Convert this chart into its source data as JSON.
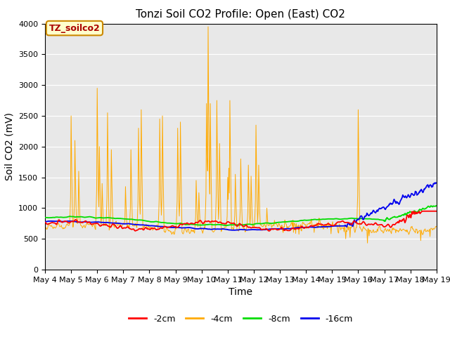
{
  "title": "Tonzi Soil CO2 Profile: Open (East) CO2",
  "xlabel": "Time",
  "ylabel": "Soil CO2 (mV)",
  "ylim": [
    0,
    4000
  ],
  "yticks": [
    0,
    500,
    1000,
    1500,
    2000,
    2500,
    3000,
    3500,
    4000
  ],
  "colors": {
    "2cm": "#ff0000",
    "4cm": "#ffaa00",
    "8cm": "#00dd00",
    "16cm": "#0000ee"
  },
  "legend_labels": [
    "-2cm",
    "-4cm",
    "-8cm",
    "-16cm"
  ],
  "annotation_box_text": "TZ_soilco2",
  "annotation_box_color": "#ffffcc",
  "annotation_box_edge": "#cc8800",
  "annotation_text_color": "#aa0000",
  "bg_color": "#e8e8e8",
  "title_fontsize": 11,
  "axis_label_fontsize": 10,
  "tick_fontsize": 8,
  "legend_fontsize": 9
}
